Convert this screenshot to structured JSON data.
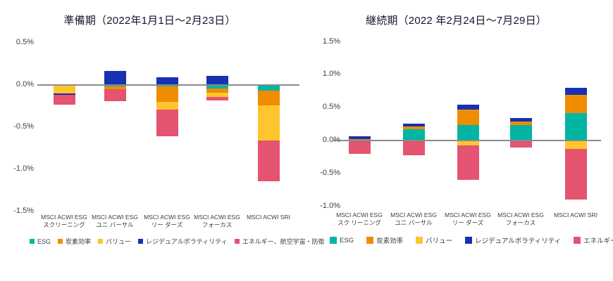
{
  "colors": {
    "esg": "#00B5A3",
    "carbon_efficiency": "#F08C00",
    "value_factor": "#FFC52F",
    "residual_volatility": "#1731B0",
    "energy_aero_defense": "#E4536F",
    "zero_line": "#8A8A8A",
    "title_text": "#14142B",
    "axis_text": "#3A3A4A"
  },
  "chart_data": [
    {
      "type": "bar",
      "stacked": true,
      "title": "準備期（2022年1月1日～2月23日）",
      "categories": [
        [
          "MSCI ACWI ESG",
          "スクリーニング"
        ],
        [
          "MSCI ACWI ESG",
          "ユニ バーサル"
        ],
        [
          "MSCI ACWI ESG",
          "リー ダーズ"
        ],
        [
          "MSCI ACWI ESG",
          "フォーカス"
        ],
        [
          "MSCI ACWI SRI"
        ]
      ],
      "series": [
        {
          "name": "ESG",
          "color": "#00B5A3",
          "values": [
            0,
            -0.02,
            -0.02,
            -0.04,
            -0.07
          ]
        },
        {
          "name": "炭素効率",
          "color": "#F08C00",
          "values": [
            0,
            -0.03,
            -0.18,
            -0.05,
            -0.17
          ]
        },
        {
          "name": "バリュー",
          "color": "#FFC52F",
          "values": [
            -0.1,
            0,
            -0.09,
            -0.05,
            -0.42
          ]
        },
        {
          "name": "レジデュアルボラティリティ",
          "color": "#1731B0",
          "values": [
            -0.02,
            0.17,
            0.09,
            0.11,
            0
          ]
        },
        {
          "name": "エネルギー、航空宇宙・防衛",
          "color": "#E4536F",
          "values": [
            -0.11,
            -0.14,
            -0.32,
            -0.04,
            -0.48
          ]
        }
      ],
      "ylim": [
        -1.5,
        0.5
      ],
      "yticks": [
        {
          "value": 0.5,
          "label": "0.5%"
        },
        {
          "value": 0.0,
          "label": "0.0%"
        },
        {
          "value": -0.5,
          "label": "-0.5%"
        },
        {
          "value": -1.0,
          "label": "-1.0%"
        },
        {
          "value": -1.5,
          "label": "-1.5%"
        }
      ],
      "grid": false,
      "legend_position": "bottom"
    },
    {
      "type": "bar",
      "stacked": true,
      "title": "継続期（2022 年2月24日～7月29日）",
      "categories": [
        [
          "MSCI ACWI ESG",
          "スク リーニング"
        ],
        [
          "MSCI ACWI ESG",
          "ユニ バーサル"
        ],
        [
          "MSCI ACWI ESG",
          "リー ダーズ"
        ],
        [
          "MSCI ACWI ESG",
          "フォーカス"
        ],
        [
          "MSCI ACWI SRI"
        ]
      ],
      "series": [
        {
          "name": "ESG",
          "color": "#00B5A3",
          "values": [
            0,
            0.17,
            0.23,
            0.24,
            0.42
          ]
        },
        {
          "name": "炭素効率",
          "color": "#F08C00",
          "values": [
            0.02,
            0.04,
            0.24,
            0.05,
            0.27
          ]
        },
        {
          "name": "バリュー",
          "color": "#FFC52F",
          "values": [
            0,
            0,
            -0.08,
            0,
            -0.13
          ]
        },
        {
          "name": "レジデュアルボラティリティ",
          "color": "#1731B0",
          "values": [
            0.04,
            0.05,
            0.08,
            0.05,
            0.11
          ]
        },
        {
          "name": "エネルギー、航空宇宙・防衛",
          "color": "#E4536F",
          "values": [
            -0.2,
            -0.22,
            -0.52,
            -0.11,
            -0.77
          ]
        }
      ],
      "ylim": [
        -1.0,
        1.5
      ],
      "yticks": [
        {
          "value": 1.5,
          "label": "1.5%"
        },
        {
          "value": 1.0,
          "label": "1.0%"
        },
        {
          "value": 0.5,
          "label": "0.5%"
        },
        {
          "value": 0.0,
          "label": "0.0%"
        },
        {
          "value": -0.5,
          "label": "-0.5%"
        },
        {
          "value": -1.0,
          "label": "-1.0%"
        }
      ],
      "grid": false,
      "legend_position": "bottom"
    }
  ]
}
